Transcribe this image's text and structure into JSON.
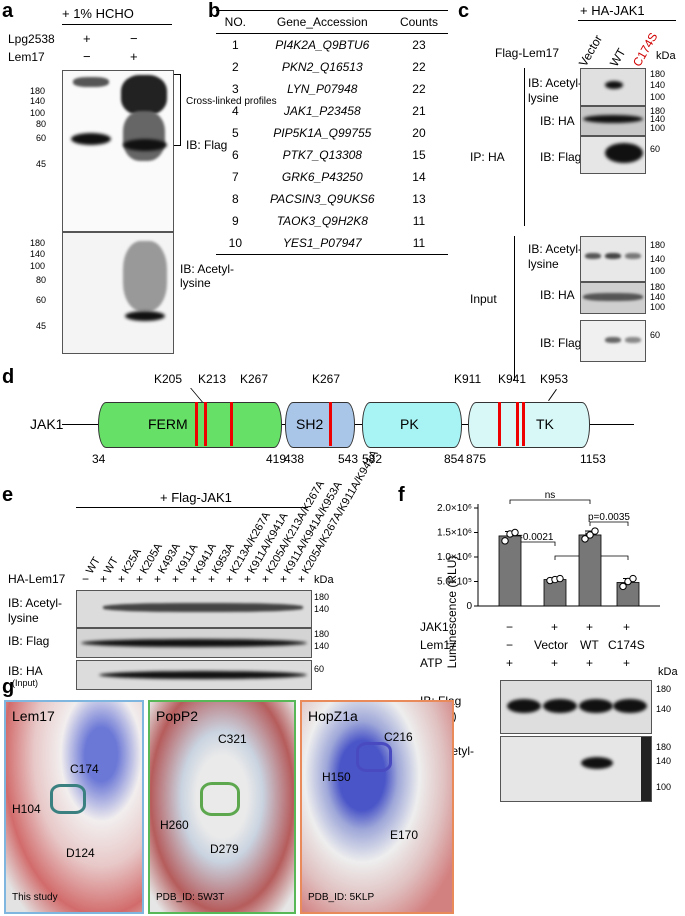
{
  "panels": {
    "a": {
      "label": "a",
      "treatment": "+ 1% HCHO",
      "row_labels": [
        "Lpg2538",
        "Lem17"
      ],
      "lane_signs": [
        [
          "+",
          "−"
        ],
        [
          "−",
          "+"
        ]
      ],
      "bracket_label": "Cross-linked profiles",
      "blot1_ib": "IB: Flag",
      "blot2_ib": "IB: Acetyl-lysine",
      "markers1": [
        "180",
        "140",
        "100",
        "80",
        "60",
        "45"
      ],
      "markers2": [
        "180",
        "140",
        "100",
        "80",
        "60",
        "45"
      ]
    },
    "b": {
      "label": "b",
      "headers": [
        "NO.",
        "Gene_Accession",
        "Counts"
      ],
      "rows": [
        {
          "no": "1",
          "gene": "PI4K2A_Q9BTU6",
          "count": "23"
        },
        {
          "no": "2",
          "gene": "PKN2_Q16513",
          "count": "22"
        },
        {
          "no": "3",
          "gene": "LYN_P07948",
          "count": "22"
        },
        {
          "no": "4",
          "gene": "JAK1_P23458",
          "count": "21"
        },
        {
          "no": "5",
          "gene": "PIP5K1A_Q99755",
          "count": "20"
        },
        {
          "no": "6",
          "gene": "PTK7_Q13308",
          "count": "15"
        },
        {
          "no": "7",
          "gene": "GRK6_P43250",
          "count": "14"
        },
        {
          "no": "8",
          "gene": "PACSIN3_Q9UKS6",
          "count": "13"
        },
        {
          "no": "9",
          "gene": "TAOK3_Q9H2K8",
          "count": "11"
        },
        {
          "no": "10",
          "gene": "YES1_P07947",
          "count": "11"
        }
      ]
    },
    "c": {
      "label": "c",
      "treatment": "+ HA-JAK1",
      "row_label": "Flag-Lem17",
      "lanes": [
        "Vector",
        "WT",
        "C174S"
      ],
      "kda": "kDa",
      "ip_label": "IP: HA",
      "input_label": "Input",
      "ip_blots": [
        "IB: Acetyl-lysine",
        "IB: HA",
        "IB: Flag"
      ],
      "input_blots": [
        "IB: Acetyl-lysine",
        "IB: HA",
        "IB: Flag"
      ],
      "m_acetyl": [
        "180",
        "140",
        "100"
      ],
      "m_ha": [
        "180",
        "140",
        "100"
      ],
      "m_flag": [
        "60"
      ]
    },
    "d": {
      "label": "d",
      "protein": "JAK1",
      "domains": [
        "FERM",
        "SH2",
        "PK",
        "TK"
      ],
      "sites": [
        "K205",
        "K213",
        "K267",
        "K267",
        "K911",
        "K941",
        "K953"
      ],
      "boundaries": [
        "34",
        "419",
        "438",
        "543",
        "582",
        "854",
        "875",
        "1153"
      ]
    },
    "e": {
      "label": "e",
      "treatment": "+ Flag-JAK1",
      "lanes": [
        "WT",
        "WT",
        "K25A",
        "K205A",
        "K493A",
        "K911A",
        "K941A",
        "K953A",
        "K213A/K267A",
        "K911A/K941A",
        "K205A/K213A/K267A",
        "K911A/K941A/K953A",
        "K205A/K267A/K911A/K941A"
      ],
      "row_label": "HA-Lem17",
      "signs": [
        "−",
        "+",
        "+",
        "+",
        "+",
        "+",
        "+",
        "+",
        "+",
        "+",
        "+",
        "+",
        "+"
      ],
      "kda": "kDa",
      "blots": [
        "IB: Acetyl-lysine",
        "IB: Flag",
        "IB: HA"
      ],
      "input_note": "(Input)",
      "m_acetyl": [
        "180",
        "140"
      ],
      "m_flag": [
        "180",
        "140"
      ],
      "m_ha": [
        "60"
      ]
    },
    "f": {
      "label": "f",
      "ylabel": "Luminescence (RLU)",
      "yticks": [
        "0",
        "5.0×10⁵",
        "1.0×10⁶",
        "1.5×10⁶",
        "2.0×10⁶"
      ],
      "stats": [
        "ns",
        "ns",
        "p=0.0035",
        "p=0.0021",
        "ns"
      ],
      "row_labels": [
        "JAK1",
        "Lem17",
        "ATP"
      ],
      "jak1_signs": [
        "−",
        "+",
        "+",
        "+"
      ],
      "lem17_labels": [
        "−",
        "Vector",
        "WT",
        "C174S"
      ],
      "atp_signs": [
        "+",
        "+",
        "+",
        "+"
      ],
      "kda": "kDa",
      "blot1_ib": "IB: Flag (JAK1)",
      "blot2_ib": "IB: Acetyl-lysine",
      "markers1": [
        "180",
        "140"
      ],
      "markers2": [
        "180",
        "140",
        "100"
      ]
    },
    "g": {
      "label": "g",
      "structures": [
        {
          "title": "Lem17",
          "residues": [
            "C174",
            "H104",
            "D124"
          ],
          "caption": "This study"
        },
        {
          "title": "PopP2",
          "residues": [
            "C321",
            "H260",
            "D279"
          ],
          "caption": "PDB_ID: 5W3T"
        },
        {
          "title": "HopZ1a",
          "residues": [
            "C216",
            "H150",
            "E170"
          ],
          "caption": "PDB_ID: 5KLP"
        }
      ]
    }
  },
  "chart_data": {
    "type": "bar",
    "categories": [
      "−",
      "Vector",
      "WT",
      "C174S"
    ],
    "values": [
      1430000,
      540000,
      1450000,
      480000
    ],
    "points": [
      [
        1330000,
        1470000,
        1500000
      ],
      [
        520000,
        540000,
        560000
      ],
      [
        1370000,
        1450000,
        1530000
      ],
      [
        400000,
        500000,
        560000
      ]
    ],
    "ylabel": "Luminescence (RLU)",
    "ylim": [
      0,
      2000000
    ],
    "colors": {
      "bar": "#777777",
      "point": "#ffffff"
    }
  }
}
